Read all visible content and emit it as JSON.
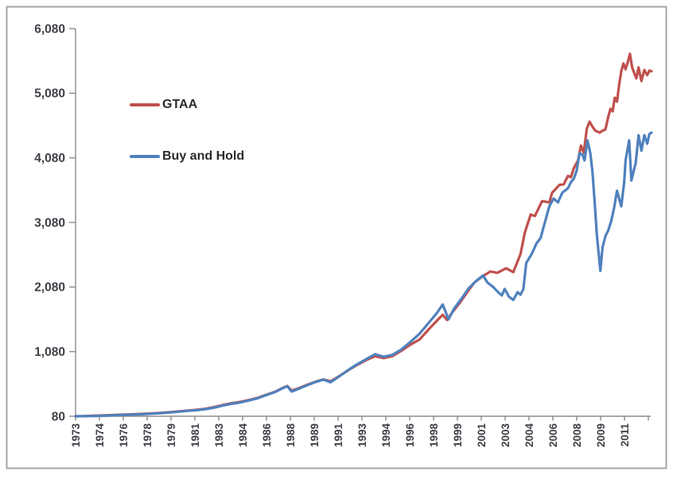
{
  "chart_data": {
    "type": "line",
    "title": "",
    "xlabel": "",
    "ylabel": "",
    "grid": false,
    "x_axis": {
      "start_year": 1973,
      "end_year": 2013,
      "tick_labels": [
        "1973",
        "1974",
        "1976",
        "1978",
        "1979",
        "1981",
        "1983",
        "1984",
        "1986",
        "1988",
        "1989",
        "1991",
        "1993",
        "1994",
        "1996",
        "1998",
        "1999",
        "2001",
        "2003",
        "2004",
        "2006",
        "2008",
        "2009",
        "2011"
      ]
    },
    "y_axis": {
      "min": 80,
      "max": 6080,
      "tick_values": [
        80,
        1080,
        2080,
        3080,
        4080,
        5080,
        6080
      ],
      "tick_labels": [
        "80",
        "1,080",
        "2,080",
        "3,080",
        "4,080",
        "5,080",
        "6,080"
      ]
    },
    "legend": {
      "position": "upper-left",
      "entries": [
        "GTAA",
        "Buy and Hold"
      ]
    },
    "colors": {
      "axis": "#8c8c8c",
      "tick_text": "#3e4147",
      "border": "#a6a6a6",
      "background": "#ffffff"
    },
    "series": [
      {
        "name": "GTAA",
        "color": "#C0504D",
        "points": [
          [
            1973.0,
            80
          ],
          [
            1973.6,
            83
          ],
          [
            1974.2,
            88
          ],
          [
            1974.8,
            92
          ],
          [
            1975.4,
            97
          ],
          [
            1976.0,
            103
          ],
          [
            1976.6,
            108
          ],
          [
            1977.2,
            112
          ],
          [
            1977.8,
            118
          ],
          [
            1978.4,
            126
          ],
          [
            1979.0,
            134
          ],
          [
            1979.6,
            144
          ],
          [
            1980.2,
            156
          ],
          [
            1980.8,
            168
          ],
          [
            1981.4,
            180
          ],
          [
            1982.0,
            196
          ],
          [
            1982.6,
            220
          ],
          [
            1983.2,
            252
          ],
          [
            1983.8,
            280
          ],
          [
            1984.4,
            300
          ],
          [
            1985.0,
            330
          ],
          [
            1985.6,
            362
          ],
          [
            1986.2,
            410
          ],
          [
            1986.8,
            455
          ],
          [
            1987.4,
            520
          ],
          [
            1987.7,
            548
          ],
          [
            1988.0,
            478
          ],
          [
            1988.4,
            505
          ],
          [
            1989.0,
            560
          ],
          [
            1989.6,
            610
          ],
          [
            1990.2,
            650
          ],
          [
            1990.7,
            620
          ],
          [
            1991.3,
            700
          ],
          [
            1992.0,
            800
          ],
          [
            1992.6,
            880
          ],
          [
            1993.2,
            950
          ],
          [
            1993.8,
            1010
          ],
          [
            1994.4,
            980
          ],
          [
            1995.0,
            1010
          ],
          [
            1995.6,
            1090
          ],
          [
            1996.2,
            1180
          ],
          [
            1996.9,
            1270
          ],
          [
            1997.5,
            1420
          ],
          [
            1998.1,
            1560
          ],
          [
            1998.5,
            1650
          ],
          [
            1998.8,
            1570
          ],
          [
            1999.2,
            1700
          ],
          [
            1999.7,
            1840
          ],
          [
            2000.2,
            2000
          ],
          [
            2000.7,
            2150
          ],
          [
            2001.3,
            2250
          ],
          [
            2001.8,
            2320
          ],
          [
            2002.3,
            2300
          ],
          [
            2002.9,
            2370
          ],
          [
            2003.4,
            2310
          ],
          [
            2003.9,
            2590
          ],
          [
            2004.2,
            2920
          ],
          [
            2004.6,
            3200
          ],
          [
            2004.9,
            3180
          ],
          [
            2005.4,
            3410
          ],
          [
            2005.9,
            3390
          ],
          [
            2006.1,
            3540
          ],
          [
            2006.6,
            3660
          ],
          [
            2006.9,
            3670
          ],
          [
            2007.2,
            3800
          ],
          [
            2007.4,
            3780
          ],
          [
            2007.6,
            3920
          ],
          [
            2007.9,
            4040
          ],
          [
            2008.1,
            4270
          ],
          [
            2008.3,
            4160
          ],
          [
            2008.5,
            4530
          ],
          [
            2008.7,
            4640
          ],
          [
            2008.9,
            4560
          ],
          [
            2009.1,
            4500
          ],
          [
            2009.4,
            4470
          ],
          [
            2009.6,
            4500
          ],
          [
            2009.8,
            4520
          ],
          [
            2010.0,
            4720
          ],
          [
            2010.15,
            4840
          ],
          [
            2010.3,
            4800
          ],
          [
            2010.45,
            5010
          ],
          [
            2010.6,
            4950
          ],
          [
            2010.75,
            5210
          ],
          [
            2010.9,
            5420
          ],
          [
            2011.05,
            5540
          ],
          [
            2011.2,
            5450
          ],
          [
            2011.35,
            5560
          ],
          [
            2011.5,
            5690
          ],
          [
            2011.65,
            5480
          ],
          [
            2011.8,
            5390
          ],
          [
            2011.95,
            5310
          ],
          [
            2012.1,
            5480
          ],
          [
            2012.3,
            5270
          ],
          [
            2012.5,
            5440
          ],
          [
            2012.7,
            5360
          ],
          [
            2012.85,
            5430
          ],
          [
            2013.0,
            5420
          ]
        ]
      },
      {
        "name": "Buy and Hold",
        "color": "#4F81BD",
        "points": [
          [
            1973.0,
            80
          ],
          [
            1973.6,
            81
          ],
          [
            1974.2,
            83
          ],
          [
            1974.8,
            86
          ],
          [
            1975.4,
            92
          ],
          [
            1976.0,
            98
          ],
          [
            1976.6,
            103
          ],
          [
            1977.2,
            107
          ],
          [
            1977.8,
            113
          ],
          [
            1978.4,
            121
          ],
          [
            1979.0,
            129
          ],
          [
            1979.6,
            139
          ],
          [
            1980.2,
            151
          ],
          [
            1980.8,
            163
          ],
          [
            1981.4,
            174
          ],
          [
            1982.0,
            188
          ],
          [
            1982.6,
            212
          ],
          [
            1983.2,
            244
          ],
          [
            1983.8,
            272
          ],
          [
            1984.4,
            292
          ],
          [
            1985.0,
            322
          ],
          [
            1985.6,
            356
          ],
          [
            1986.2,
            405
          ],
          [
            1986.8,
            450
          ],
          [
            1987.4,
            515
          ],
          [
            1987.7,
            545
          ],
          [
            1988.0,
            462
          ],
          [
            1988.4,
            495
          ],
          [
            1989.0,
            552
          ],
          [
            1989.6,
            605
          ],
          [
            1990.2,
            648
          ],
          [
            1990.7,
            605
          ],
          [
            1991.3,
            695
          ],
          [
            1992.0,
            805
          ],
          [
            1992.6,
            890
          ],
          [
            1993.2,
            965
          ],
          [
            1993.8,
            1040
          ],
          [
            1994.4,
            1000
          ],
          [
            1995.0,
            1030
          ],
          [
            1995.6,
            1110
          ],
          [
            1996.2,
            1220
          ],
          [
            1996.9,
            1360
          ],
          [
            1997.5,
            1520
          ],
          [
            1998.1,
            1680
          ],
          [
            1998.5,
            1810
          ],
          [
            1998.9,
            1580
          ],
          [
            1999.3,
            1750
          ],
          [
            1999.8,
            1900
          ],
          [
            2000.3,
            2060
          ],
          [
            2000.8,
            2170
          ],
          [
            2001.3,
            2260
          ],
          [
            2001.6,
            2150
          ],
          [
            2002.0,
            2080
          ],
          [
            2002.4,
            1990
          ],
          [
            2002.6,
            1950
          ],
          [
            2002.8,
            2050
          ],
          [
            2003.1,
            1930
          ],
          [
            2003.4,
            1880
          ],
          [
            2003.7,
            2000
          ],
          [
            2003.9,
            1960
          ],
          [
            2004.1,
            2050
          ],
          [
            2004.3,
            2450
          ],
          [
            2004.7,
            2600
          ],
          [
            2005.0,
            2750
          ],
          [
            2005.3,
            2840
          ],
          [
            2005.9,
            3330
          ],
          [
            2006.2,
            3450
          ],
          [
            2006.5,
            3390
          ],
          [
            2006.8,
            3540
          ],
          [
            2007.2,
            3610
          ],
          [
            2007.4,
            3700
          ],
          [
            2007.6,
            3760
          ],
          [
            2007.8,
            3880
          ],
          [
            2008.0,
            4150
          ],
          [
            2008.2,
            4130
          ],
          [
            2008.35,
            4040
          ],
          [
            2008.55,
            4350
          ],
          [
            2008.75,
            4150
          ],
          [
            2008.9,
            3860
          ],
          [
            2009.05,
            3400
          ],
          [
            2009.2,
            2900
          ],
          [
            2009.45,
            2330
          ],
          [
            2009.6,
            2700
          ],
          [
            2009.8,
            2870
          ],
          [
            2010.0,
            2960
          ],
          [
            2010.2,
            3100
          ],
          [
            2010.4,
            3300
          ],
          [
            2010.6,
            3570
          ],
          [
            2010.9,
            3330
          ],
          [
            2011.1,
            3700
          ],
          [
            2011.2,
            4040
          ],
          [
            2011.45,
            4350
          ],
          [
            2011.6,
            3730
          ],
          [
            2011.9,
            4000
          ],
          [
            2012.1,
            4430
          ],
          [
            2012.3,
            4190
          ],
          [
            2012.5,
            4430
          ],
          [
            2012.7,
            4300
          ],
          [
            2012.85,
            4450
          ],
          [
            2013.0,
            4470
          ]
        ]
      }
    ]
  }
}
